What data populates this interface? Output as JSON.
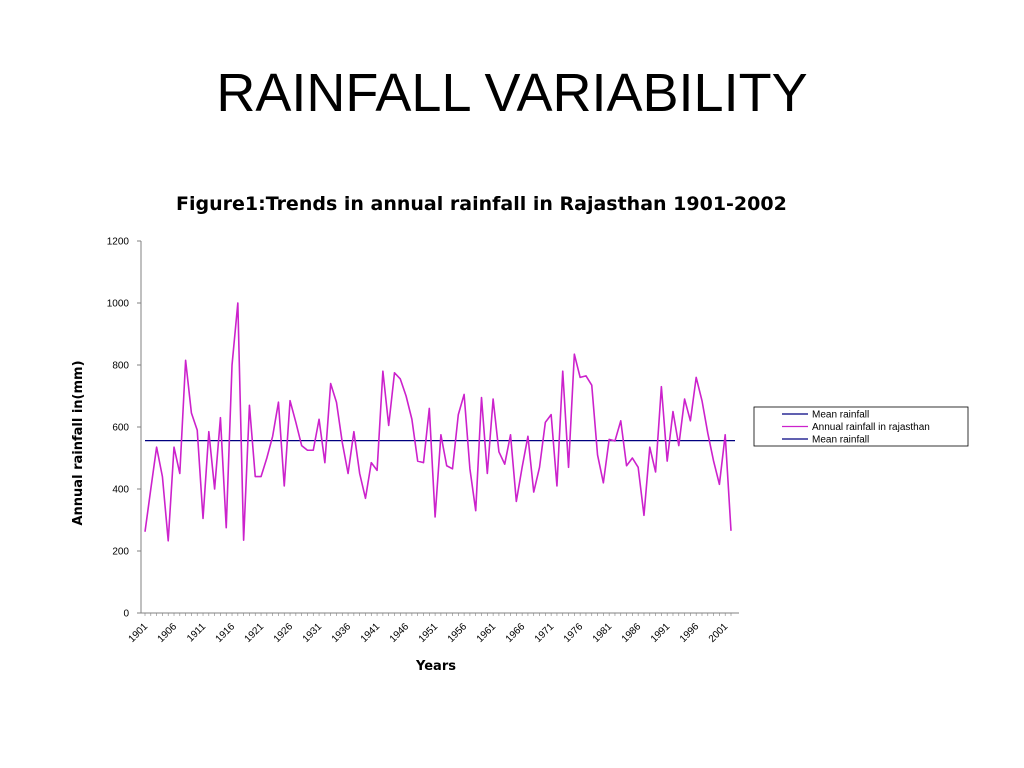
{
  "slide": {
    "title": "RAINFALL VARIABILITY"
  },
  "colors": {
    "annual": "#CC22CC",
    "mean": "#000080",
    "axis": "#808080"
  },
  "chart_data": {
    "type": "line",
    "title": "Figure1:Trends in annual rainfall in Rajasthan 1901-2002",
    "xlabel": "Years",
    "ylabel": "Annual rainfall in(mm)",
    "ylim": [
      0,
      1200
    ],
    "yticks": [
      0,
      200,
      400,
      600,
      800,
      1000,
      1200
    ],
    "xlim": [
      1901,
      2002
    ],
    "xticks": [
      "1901",
      "1906",
      "1911",
      "1916",
      "1921",
      "1926",
      "1931",
      "1936",
      "1941",
      "1946",
      "1951",
      "1956",
      "1961",
      "1966",
      "1971",
      "1976",
      "1981",
      "1986",
      "1991",
      "1996",
      "2001"
    ],
    "grid": false,
    "legend_position": "right",
    "legend": [
      "Mean rainfall",
      "Annual rainfall in rajasthan",
      "Mean rainfall"
    ],
    "series": [
      {
        "name": "Annual rainfall in rajasthan",
        "x_start": 1901,
        "values": [
          262,
          400,
          535,
          440,
          233,
          535,
          450,
          815,
          645,
          590,
          305,
          585,
          400,
          630,
          275,
          800,
          1000,
          235,
          670,
          440,
          440,
          500,
          570,
          680,
          410,
          685,
          615,
          540,
          525,
          525,
          625,
          485,
          740,
          680,
          550,
          450,
          585,
          450,
          370,
          485,
          460,
          780,
          605,
          775,
          755,
          700,
          625,
          490,
          485,
          660,
          310,
          575,
          475,
          465,
          640,
          705,
          465,
          330,
          695,
          450,
          690,
          520,
          480,
          575,
          360,
          470,
          570,
          390,
          470,
          615,
          640,
          410,
          780,
          470,
          835,
          760,
          765,
          735,
          510,
          420,
          560,
          555,
          620,
          475,
          500,
          470,
          315,
          535,
          455,
          730,
          490,
          650,
          540,
          690,
          620,
          760,
          685,
          580,
          490,
          415,
          575,
          265
        ]
      },
      {
        "name": "Mean rainfall",
        "value": 556
      }
    ]
  }
}
